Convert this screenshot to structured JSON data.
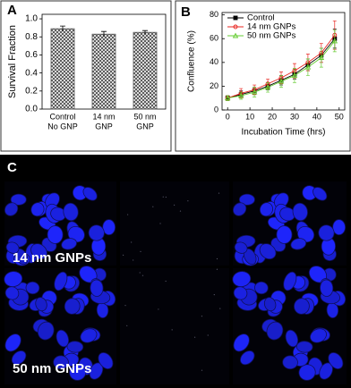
{
  "chart_data": [
    {
      "type": "bar",
      "panel_label": "A",
      "ylabel": "Survival Fraction",
      "categories": [
        [
          "Control",
          "No GNP"
        ],
        [
          "14 nm",
          "GNP"
        ],
        [
          "50 nm",
          "GNP"
        ]
      ],
      "values": [
        0.89,
        0.83,
        0.85
      ],
      "errors": [
        0.03,
        0.03,
        0.02
      ],
      "color": "#555555",
      "ylim": [
        0,
        1.05
      ],
      "yticks": [
        {
          "value": 0,
          "label": "0.0"
        },
        0.2,
        0.4,
        0.6,
        0.8,
        {
          "value": 1,
          "label": "1.0"
        }
      ]
    },
    {
      "type": "line",
      "panel_label": "B",
      "xlabel": "Incubation Time (hrs)",
      "ylabel": "Confluence (%)",
      "x": [
        0,
        6,
        12,
        18,
        24,
        30,
        36,
        42,
        48
      ],
      "series": [
        {
          "name": "Control",
          "color": "#000000",
          "values": [
            10,
            13,
            16,
            20,
            25,
            30,
            38,
            46,
            60
          ],
          "errors": [
            2,
            3,
            3,
            3,
            4,
            4,
            5,
            6,
            8
          ]
        },
        {
          "name": "14 nm GNPs",
          "color": "#e8241f",
          "values": [
            10,
            14,
            17,
            22,
            27,
            33,
            40,
            48,
            63
          ],
          "errors": [
            2,
            4,
            4,
            4,
            5,
            6,
            7,
            8,
            12
          ]
        },
        {
          "name": "50 nm GNPs",
          "color": "#66cc33",
          "values": [
            10,
            12,
            15,
            19,
            24,
            29,
            36,
            44,
            58
          ],
          "errors": [
            2,
            3,
            4,
            4,
            5,
            6,
            7,
            8,
            9
          ]
        }
      ],
      "xlim": [
        -2.5,
        52.5
      ],
      "ylim": [
        0,
        82
      ],
      "xticks": [
        0,
        10,
        20,
        30,
        40,
        50
      ],
      "yticks": [
        0,
        20,
        40,
        60,
        80
      ]
    }
  ],
  "panel_c": {
    "label": "C",
    "row_labels": [
      "14 nm GNPs",
      "50 nm GNPs"
    ]
  }
}
